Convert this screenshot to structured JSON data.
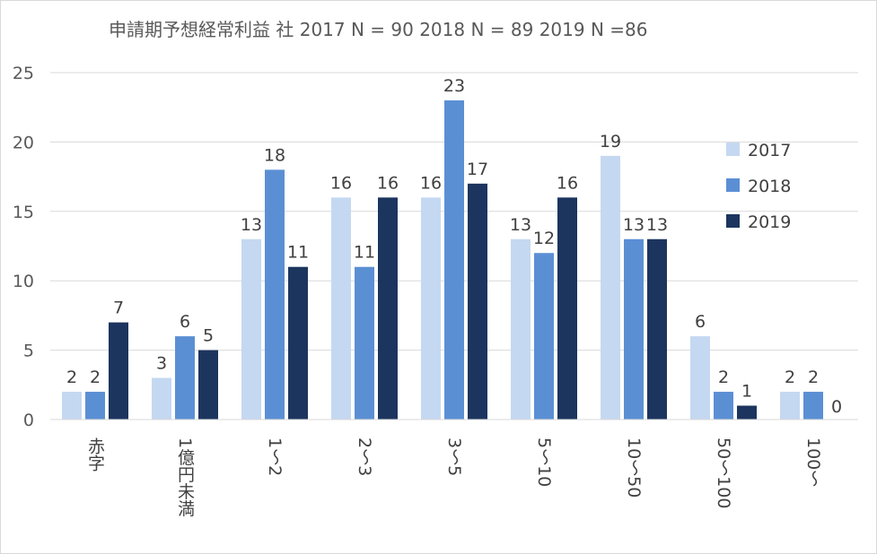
{
  "chart_data": {
    "type": "bar",
    "title": "申請期予想経常利益  社    2017 N =  90   2018 N = 89   2019 N =86",
    "categories": [
      "赤字",
      "1億円未満",
      "1～2",
      "2～3",
      "3～5",
      "5～10",
      "10～50",
      "50～100",
      "100～"
    ],
    "series": [
      {
        "name": "2017",
        "color": "#c5d8f1",
        "values": [
          2,
          3,
          13,
          16,
          16,
          13,
          19,
          6,
          2
        ]
      },
      {
        "name": "2018",
        "color": "#5b8fd4",
        "values": [
          2,
          6,
          18,
          11,
          23,
          12,
          13,
          2,
          2
        ]
      },
      {
        "name": "2019",
        "color": "#1c355e",
        "values": [
          7,
          5,
          11,
          16,
          17,
          16,
          13,
          1,
          0
        ]
      }
    ],
    "ylim": [
      0,
      25
    ],
    "yticks": [
      0,
      5,
      10,
      15,
      20,
      25
    ],
    "ytick_labels": [
      "0",
      "5",
      "10",
      "15",
      "20",
      "25"
    ],
    "grid": true,
    "legend_position": "right",
    "xlabel": "",
    "ylabel": ""
  }
}
